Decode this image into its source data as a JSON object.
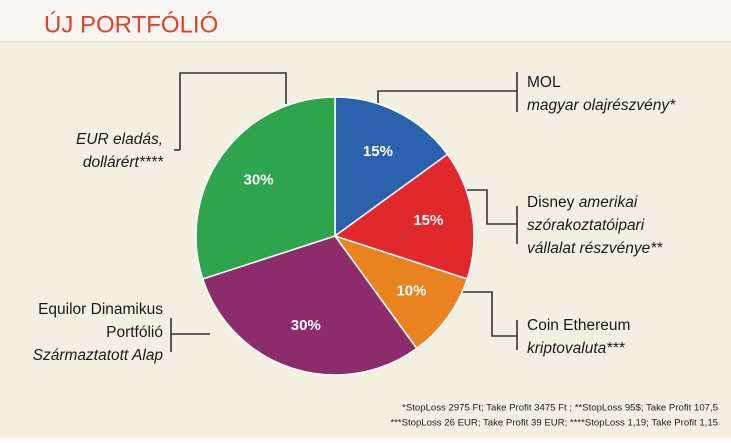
{
  "chart_data": {
    "type": "pie",
    "title": "ÚJ PORTFÓLIÓ",
    "categories": [
      [
        [
          {
            "text": "MOL",
            "italic": false
          }
        ],
        [
          {
            "text": "magyar olajrészvény*",
            "italic": true
          }
        ]
      ],
      [
        [
          {
            "text": "Disney ",
            "italic": false
          },
          {
            "text": "amerikai",
            "italic": true
          }
        ],
        [
          {
            "text": "szórakoztatóipari",
            "italic": true
          }
        ],
        [
          {
            "text": "vállalat részvénye**",
            "italic": true
          }
        ]
      ],
      [
        [
          {
            "text": "Coin Ethereum",
            "italic": false
          }
        ],
        [
          {
            "text": "kriptovaluta***",
            "italic": true
          }
        ]
      ],
      [
        [
          {
            "text": "Equilor Dinamikus",
            "italic": false
          }
        ],
        [
          {
            "text": "Portfólió",
            "italic": false
          }
        ],
        [
          {
            "text": "Származtatott Alap",
            "italic": true
          }
        ]
      ],
      [
        [
          {
            "text": "EUR eladás,",
            "italic": true
          }
        ],
        [
          {
            "text": "dollárért****",
            "italic": true
          }
        ]
      ]
    ],
    "values": [
      15,
      15,
      10,
      30,
      30
    ],
    "value_labels": [
      "15%",
      "15%",
      "10%",
      "30%",
      "30%"
    ],
    "colors": [
      "#2b62ae",
      "#e1282c",
      "#e9831f",
      "#8c2c6b",
      "#2ea44c"
    ],
    "notes": [
      "*StopLoss 2975 Ft; Take Profit 3475 Ft ; **StopLoss 95$; Take Profit 107,5",
      "***StopLoss 26 EUR; Take Profit 39 EUR; ****StopLoss 1,19; Take Profit 1,15"
    ]
  }
}
